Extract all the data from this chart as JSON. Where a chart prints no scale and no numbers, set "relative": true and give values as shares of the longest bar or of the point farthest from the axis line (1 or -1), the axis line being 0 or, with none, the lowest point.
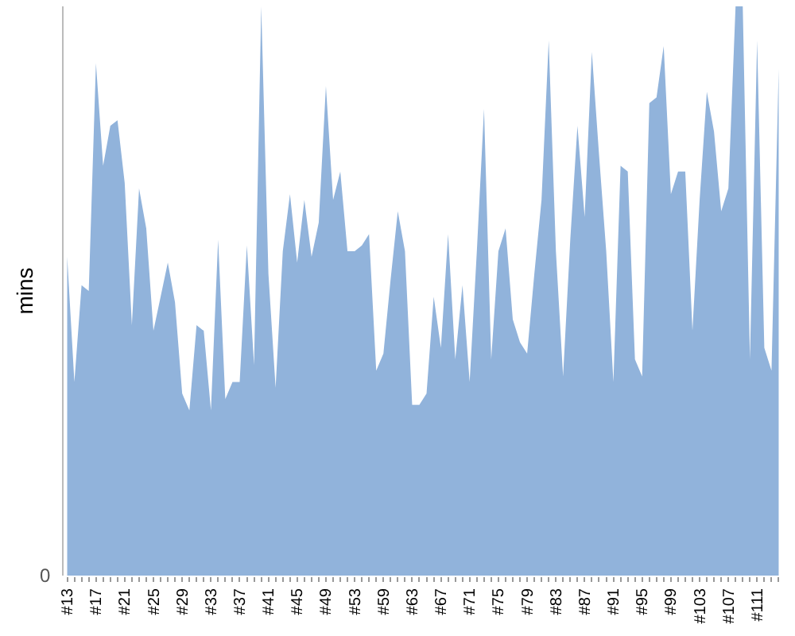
{
  "chart_data": {
    "type": "area",
    "relative": true,
    "ylabel": "mins",
    "annotations": [
      "0"
    ],
    "color": "#91b3db",
    "categories": [
      "#13",
      null,
      null,
      null,
      "#17",
      null,
      null,
      null,
      "#21",
      null,
      null,
      null,
      "#25",
      null,
      null,
      null,
      "#29",
      null,
      null,
      null,
      "#33",
      null,
      null,
      null,
      "#37",
      null,
      null,
      null,
      "#41",
      null,
      null,
      null,
      "#45",
      null,
      null,
      null,
      "#49",
      null,
      null,
      null,
      "#53",
      null,
      null,
      null,
      "#59",
      null,
      null,
      null,
      "#63",
      null,
      null,
      null,
      "#67",
      null,
      null,
      null,
      "#71",
      null,
      null,
      null,
      "#75",
      null,
      null,
      null,
      "#79",
      null,
      null,
      null,
      "#83",
      null,
      null,
      null,
      "#87",
      null,
      null,
      null,
      "#91",
      null,
      null,
      null,
      "#95",
      null,
      null,
      null,
      "#99",
      null,
      null,
      null,
      "#103",
      null,
      null,
      null,
      "#107",
      null,
      null,
      null,
      "#111",
      null,
      null,
      null
    ],
    "values": [
      0.56,
      0.34,
      0.51,
      0.5,
      0.9,
      0.72,
      0.79,
      0.8,
      0.69,
      0.44,
      0.68,
      0.61,
      0.43,
      0.49,
      0.55,
      0.48,
      0.32,
      0.29,
      0.44,
      0.43,
      0.29,
      0.59,
      0.31,
      0.34,
      0.34,
      0.58,
      0.37,
      1,
      0.53,
      0.33,
      0.57,
      0.67,
      0.55,
      0.66,
      0.56,
      0.62,
      0.86,
      0.66,
      0.71,
      0.57,
      0.57,
      0.58,
      0.6,
      0.36,
      0.39,
      0.52,
      0.64,
      0.57,
      0.3,
      0.3,
      0.32,
      0.49,
      0.4,
      0.6,
      0.38,
      0.51,
      0.34,
      0.57,
      0.82,
      0.38,
      0.57,
      0.61,
      0.45,
      0.41,
      0.39,
      0.53,
      0.66,
      0.94,
      0.57,
      0.35,
      0.59,
      0.79,
      0.63,
      0.92,
      0.74,
      0.57,
      0.34,
      0.72,
      0.71,
      0.38,
      0.35,
      0.83,
      0.84,
      0.93,
      0.67,
      0.71,
      0.71,
      0.43,
      0.66,
      0.85,
      0.78,
      0.64,
      0.68,
      1,
      1,
      0.38,
      0.94,
      0.4,
      0.36,
      0.89
    ]
  }
}
